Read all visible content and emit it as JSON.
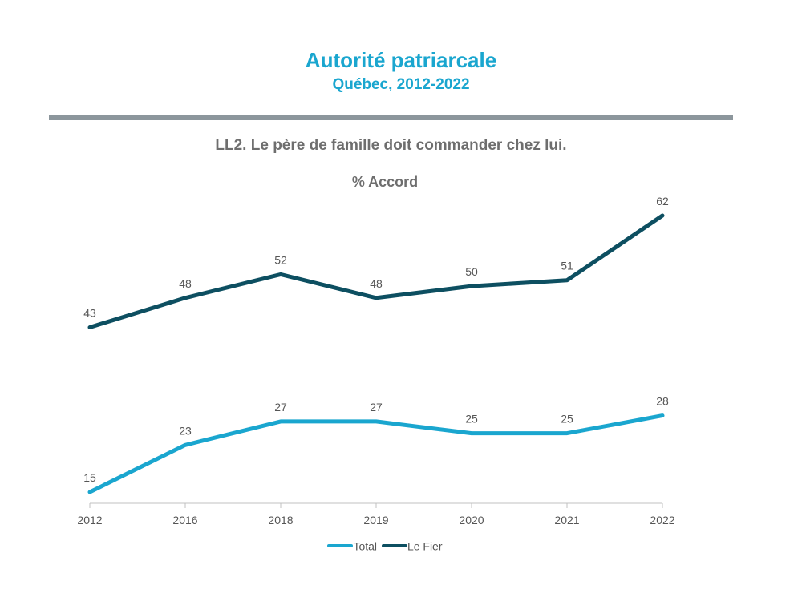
{
  "header": {
    "title": "Autorité patriarcale",
    "subtitle": "Québec, 2012-2022"
  },
  "question": "LL2. Le père de famille doit commander chez lui.",
  "measure": "% Accord",
  "chart_data": {
    "type": "line",
    "categories": [
      "2012",
      "2016",
      "2018",
      "2019",
      "2020",
      "2021",
      "2022"
    ],
    "series": [
      {
        "name": "Total",
        "color": "#1aa6cf",
        "values": [
          15,
          23,
          27,
          27,
          25,
          25,
          28
        ]
      },
      {
        "name": "Le Fier",
        "color": "#0d4f61",
        "values": [
          43,
          48,
          52,
          48,
          50,
          51,
          62
        ]
      }
    ],
    "ylim": [
      12,
      65
    ],
    "grid": false,
    "legend": "bottom-center"
  }
}
